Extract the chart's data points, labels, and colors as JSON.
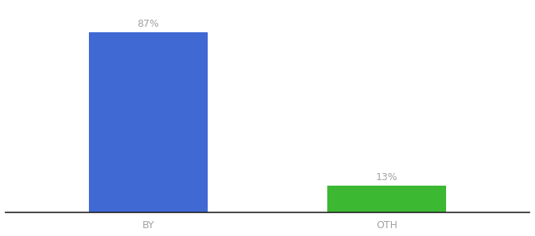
{
  "categories": [
    "BY",
    "OTH"
  ],
  "values": [
    87,
    13
  ],
  "bar_colors": [
    "#4169d4",
    "#3cb832"
  ],
  "label_texts": [
    "87%",
    "13%"
  ],
  "background_color": "#ffffff",
  "text_color": "#a0a0a0",
  "label_fontsize": 9,
  "tick_fontsize": 9,
  "ylim": [
    0,
    100
  ],
  "bar_width": 0.5,
  "spine_color": "#222222"
}
